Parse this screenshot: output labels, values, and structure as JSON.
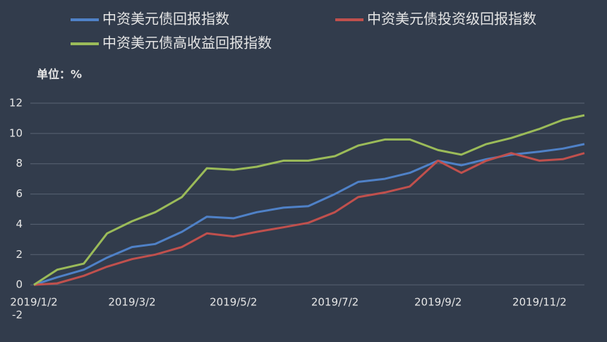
{
  "chart_data": {
    "type": "line",
    "unit_label": "单位：%",
    "x": [
      "2019/1/2",
      "2019/1/16",
      "2019/2/1",
      "2019/2/15",
      "2019/3/2",
      "2019/3/16",
      "2019/4/1",
      "2019/4/16",
      "2019/5/2",
      "2019/5/16",
      "2019/6/1",
      "2019/6/16",
      "2019/7/2",
      "2019/7/16",
      "2019/8/1",
      "2019/8/16",
      "2019/9/2",
      "2019/9/16",
      "2019/10/1",
      "2019/10/16",
      "2019/11/2",
      "2019/11/16",
      "2019/11/29"
    ],
    "series": [
      {
        "name": "中资美元债回报指数",
        "color": "#4f81c7",
        "values": [
          0,
          0.5,
          1.0,
          1.8,
          2.5,
          2.7,
          3.5,
          4.5,
          4.4,
          4.8,
          5.1,
          5.2,
          6.0,
          6.8,
          7.0,
          7.4,
          8.2,
          7.9,
          8.3,
          8.6,
          8.8,
          9.0,
          9.3
        ]
      },
      {
        "name": "中资美元债投资级回报指数",
        "color": "#c0504d",
        "values": [
          0,
          0.1,
          0.6,
          1.2,
          1.7,
          2.0,
          2.5,
          3.4,
          3.2,
          3.5,
          3.8,
          4.1,
          4.8,
          5.8,
          6.1,
          6.5,
          8.2,
          7.4,
          8.2,
          8.7,
          8.2,
          8.3,
          8.7
        ]
      },
      {
        "name": "中资美元债高收益回报指数",
        "color": "#9bbb59",
        "values": [
          0,
          1.0,
          1.4,
          3.4,
          4.2,
          4.8,
          5.8,
          7.7,
          7.6,
          7.8,
          8.2,
          8.2,
          8.5,
          9.2,
          9.6,
          9.6,
          8.9,
          8.6,
          9.3,
          9.7,
          10.3,
          10.9,
          11.2
        ]
      }
    ],
    "xlim": [
      "2019/1/2",
      "2019/11/29"
    ],
    "xticks": [
      "2019/1/2",
      "2019/3/2",
      "2019/5/2",
      "2019/7/2",
      "2019/9/2",
      "2019/11/2"
    ],
    "ylim": [
      -2,
      12
    ],
    "yticks": [
      -2,
      0,
      2,
      4,
      6,
      8,
      10,
      12
    ],
    "grid": true
  }
}
